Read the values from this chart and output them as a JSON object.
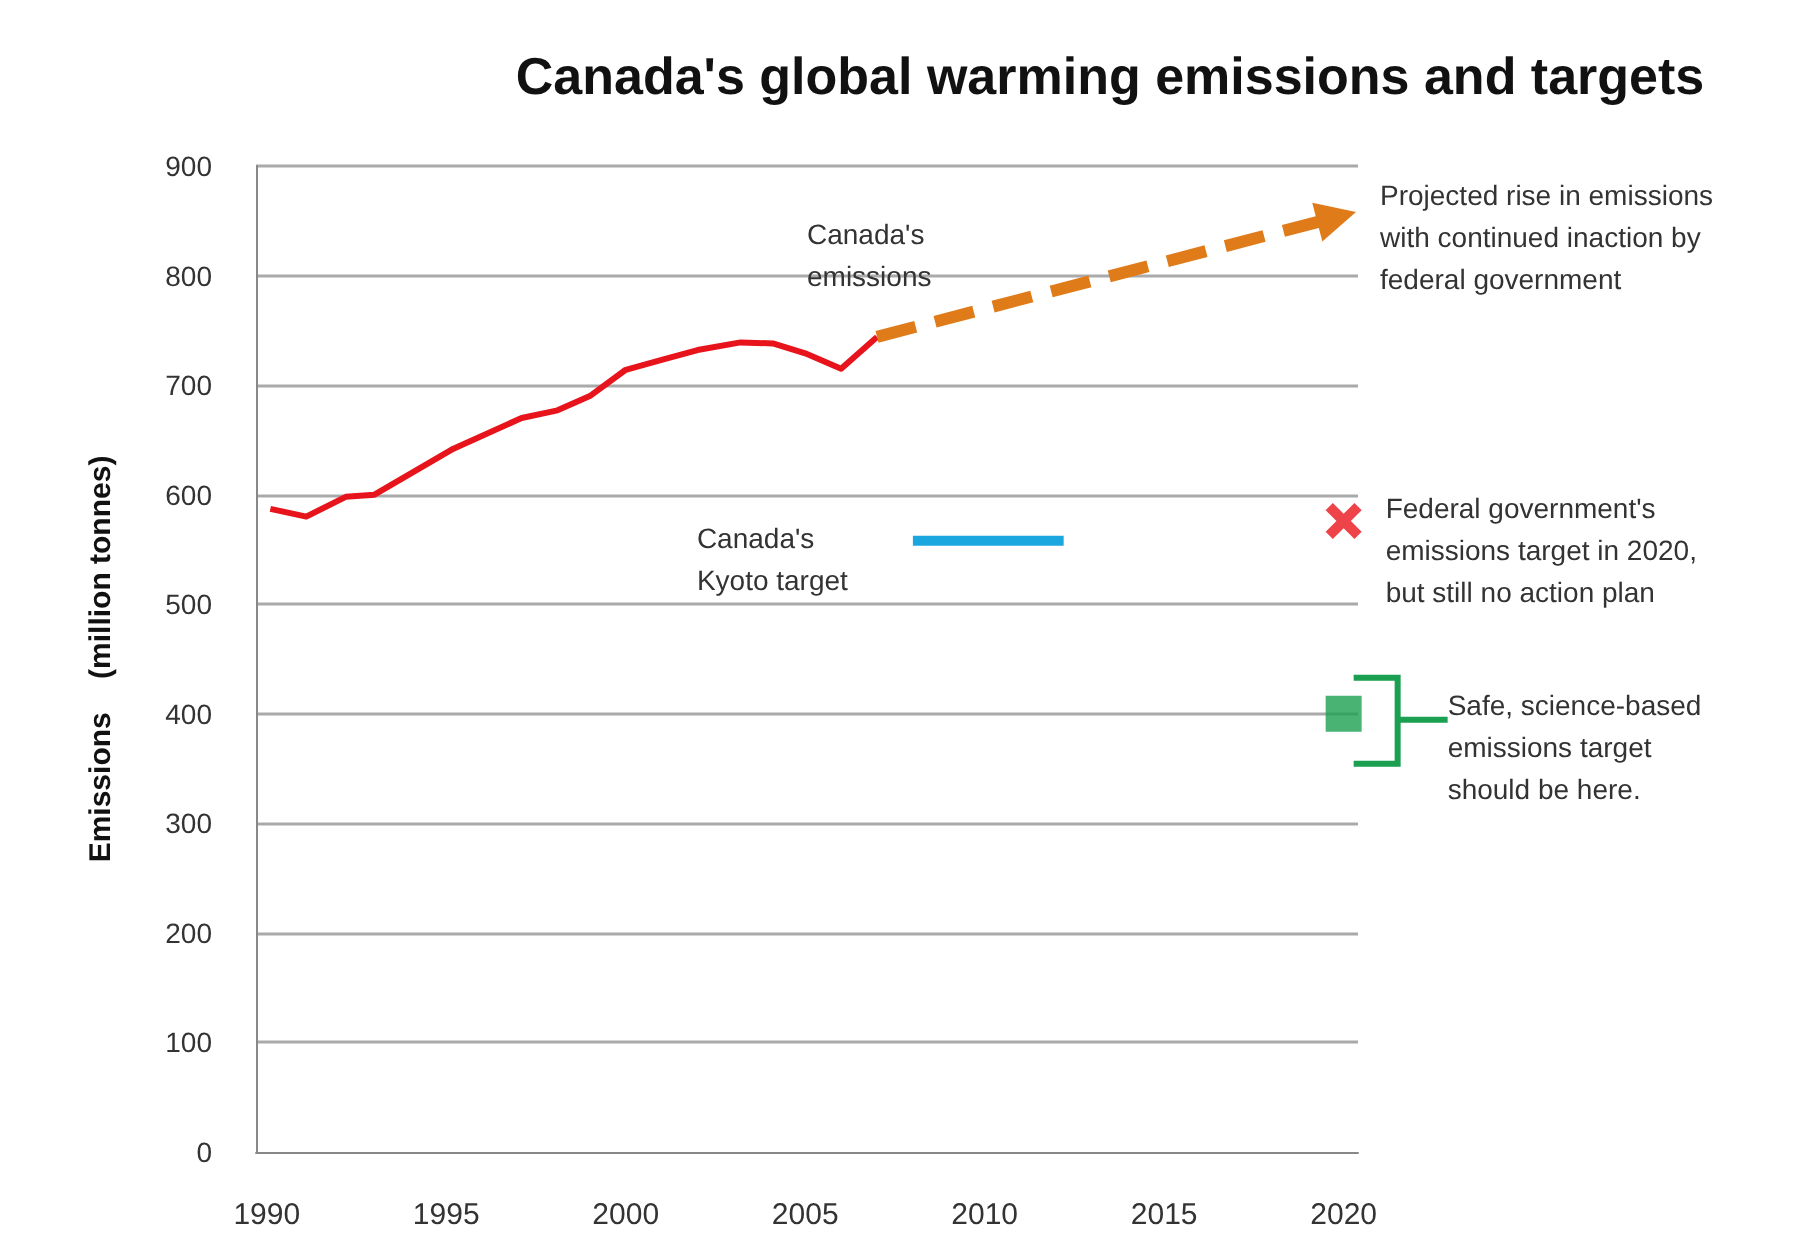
{
  "chart_data": {
    "type": "line",
    "title": "Canada's global warming emissions and targets",
    "ylabel": "Emissions    (million tonnes)",
    "xlim": [
      1989.7,
      2020.4
    ],
    "xticks": [
      1990,
      1995,
      2000,
      2005,
      2010,
      2015,
      2020
    ],
    "ylim": [
      0,
      900
    ],
    "yticks": [
      0,
      100,
      200,
      300,
      400,
      500,
      600,
      700,
      800,
      900
    ],
    "grid": "y",
    "annotations": [
      "Projected rise in emissions with continued inaction by federal government"
    ],
    "series": [
      {
        "name": "Canada's emissions",
        "color": "#e8141c",
        "marker": "none",
        "x": [
          1990.1,
          1991.1,
          1992.2,
          1993,
          1995.2,
          1997.1,
          1998.1,
          1999,
          2000,
          2001,
          2002,
          2003.2,
          2004.1,
          2005,
          2006,
          2007
        ],
        "values": [
          587,
          580,
          598,
          600,
          642,
          670,
          677,
          690,
          714,
          723,
          732,
          739,
          738,
          729,
          715,
          744
        ]
      },
      {
        "name": "Canada's Kyoto target",
        "color": "#1aa7e0",
        "marker": "none",
        "x": [
          2008,
          2012.2
        ],
        "values": [
          558,
          558
        ]
      },
      {
        "type": "scatter",
        "name": "Federal government's emissions target in 2020, but still no action plan",
        "color": "#e8141c",
        "marker": "cross",
        "x": [
          2020
        ],
        "values": [
          576
        ]
      },
      {
        "type": "scatter",
        "name": "Safe, science-based emissions target should be here.",
        "color": "#1aa050",
        "marker": "square",
        "x": [
          2020
        ],
        "values": [
          400
        ]
      }
    ]
  }
}
